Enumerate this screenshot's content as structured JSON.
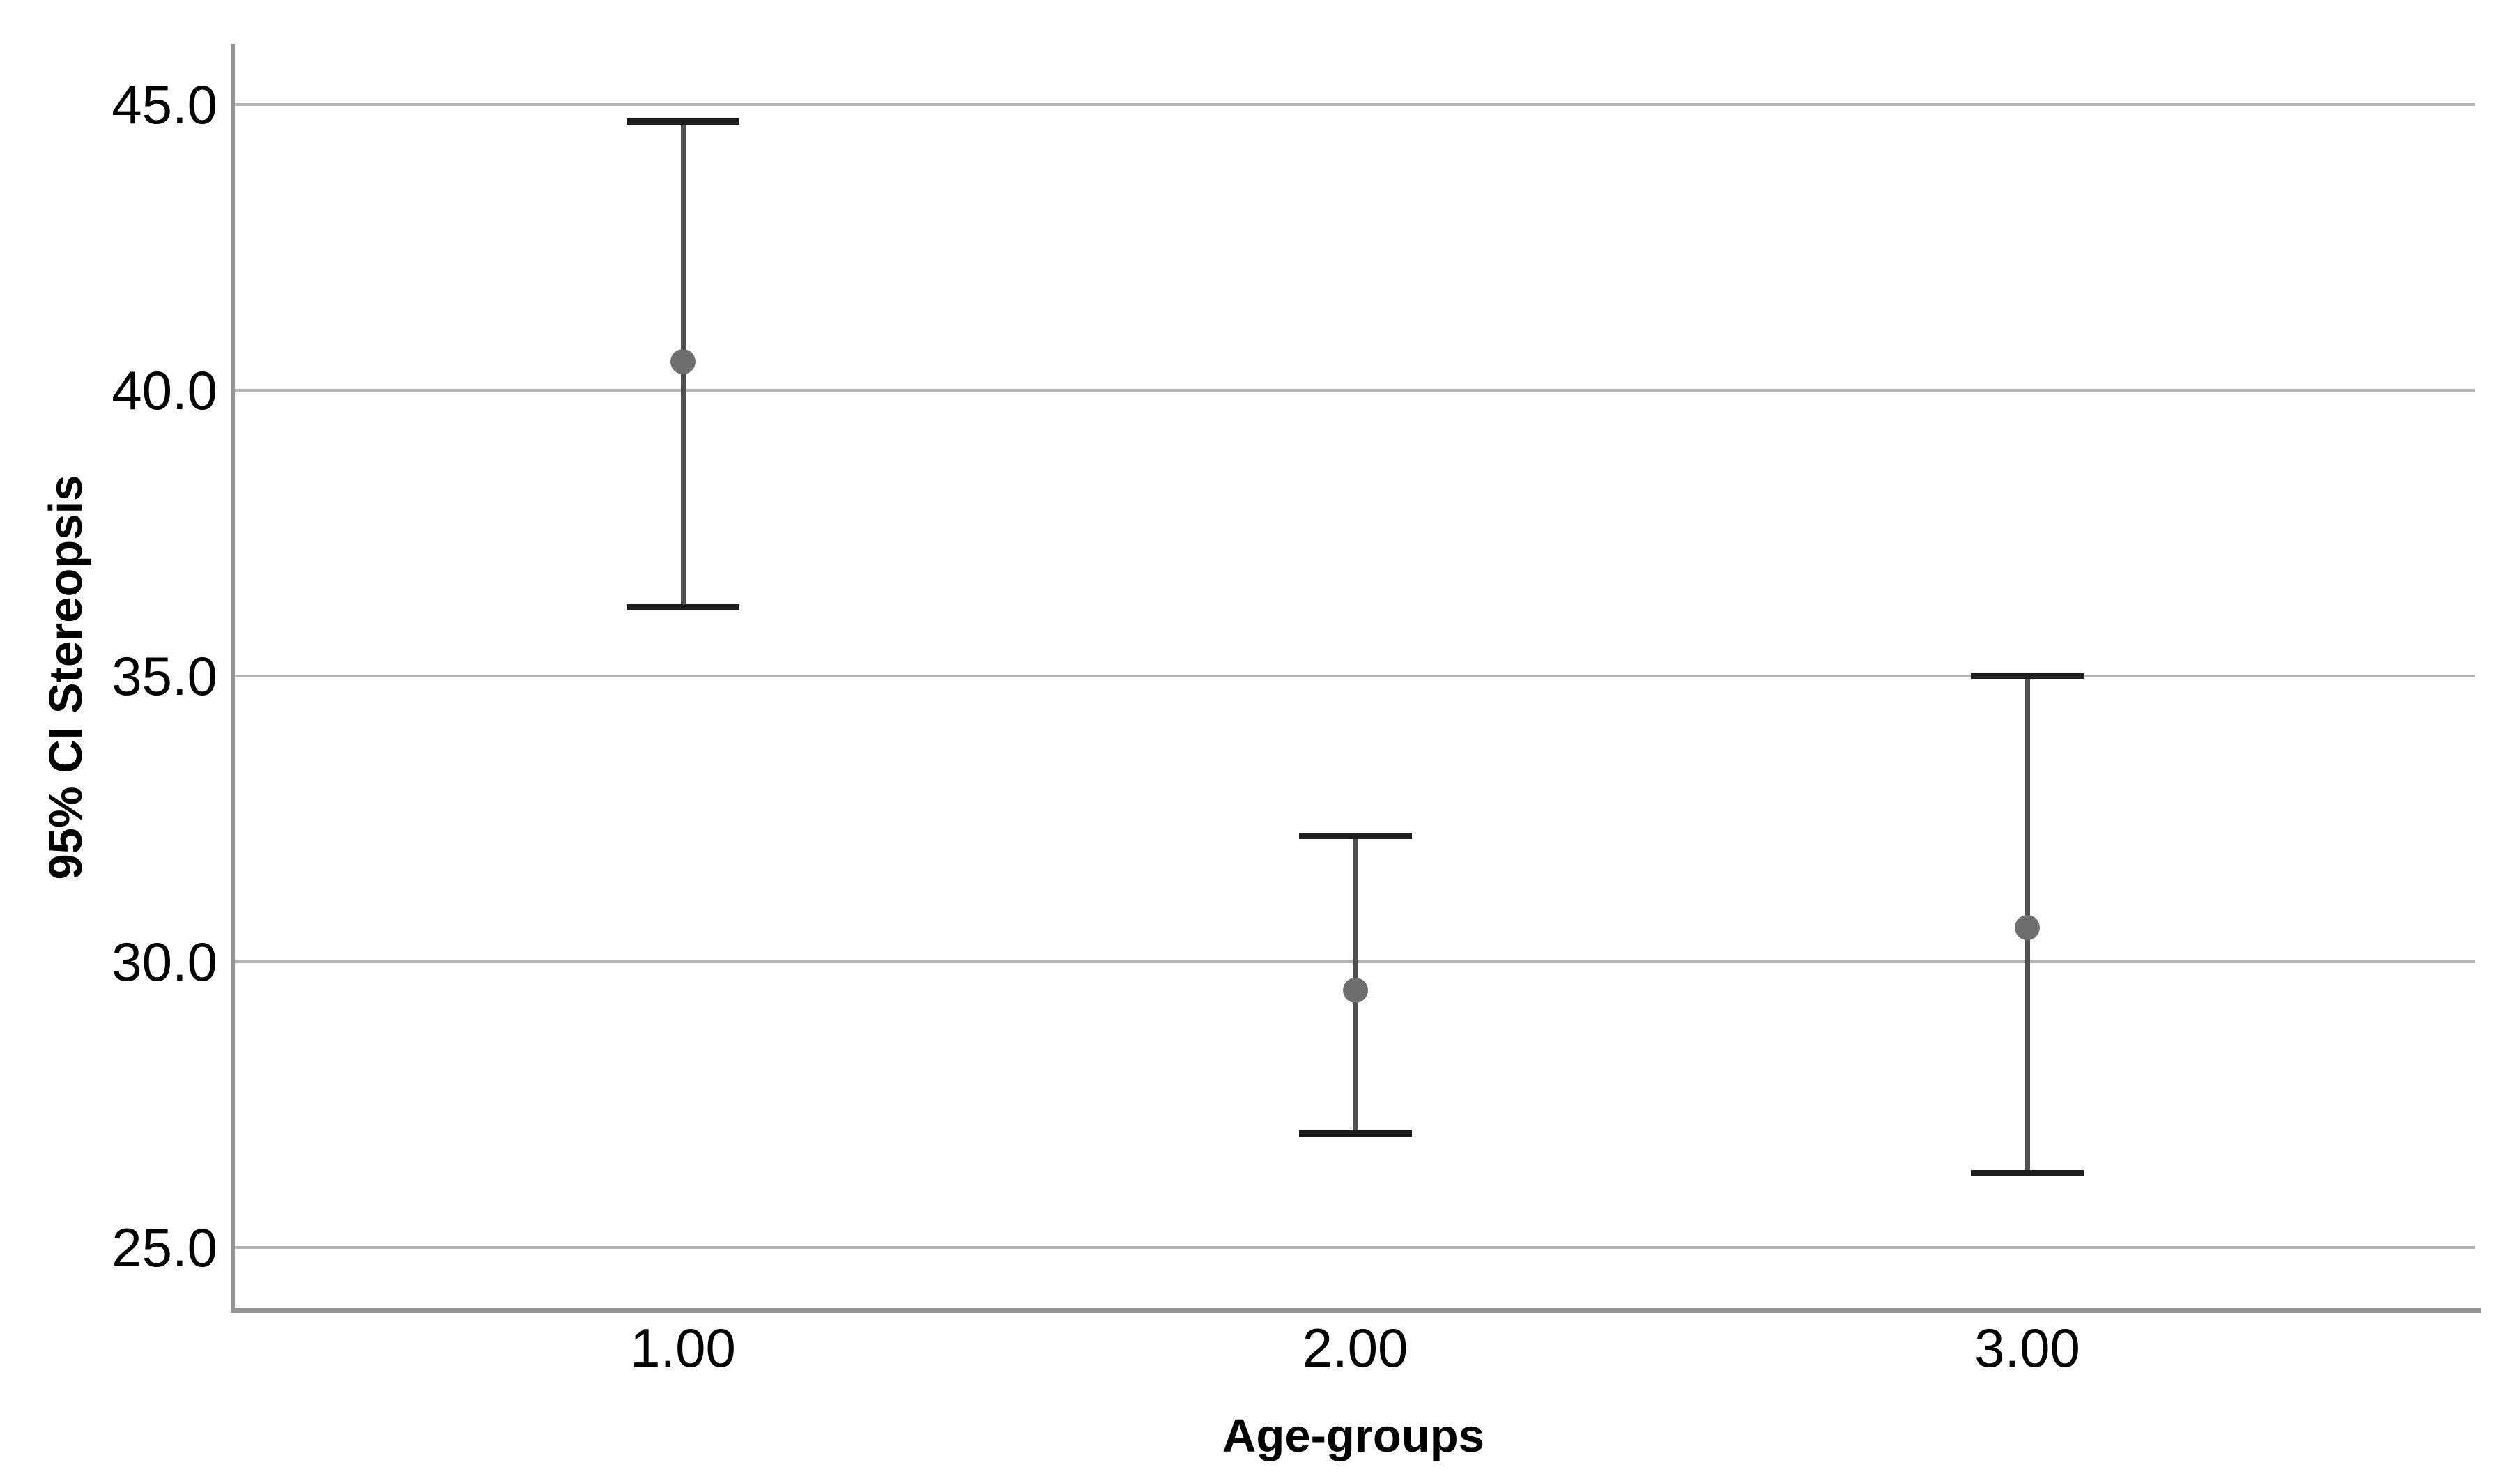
{
  "figure": {
    "background": "#ffffff",
    "y_axis_title": "95% CI Stereopsis",
    "x_axis_title": "Age-groups",
    "y_tick_labels": [
      "45.0",
      "40.0",
      "35.0",
      "30.0",
      "25.0"
    ],
    "x_tick_labels": [
      "1.00",
      "2.00",
      "3.00"
    ]
  },
  "colors": {
    "text": "#000000",
    "axis_line": "#949494",
    "gridline": "#b4b4b4",
    "errorbar_line": "#4f4f4f",
    "errorbar_cap": "#1f1f1f",
    "mean_dot": "#6e6e6e",
    "background": "#ffffff"
  },
  "chart_data": {
    "type": "scatter",
    "variant": "mean-point-with-95ci-error-bars",
    "title": "",
    "xlabel": "Age-groups",
    "ylabel": "95% CI Stereopsis",
    "categories": [
      "1.00",
      "2.00",
      "3.00"
    ],
    "series": [
      {
        "name": "95% CI Stereopsis",
        "means": [
          40.5,
          29.5,
          30.6
        ],
        "ci_lower": [
          36.2,
          27.0,
          26.3
        ],
        "ci_upper": [
          44.7,
          32.2,
          35.0
        ]
      }
    ],
    "y_ticks": [
      45.0,
      40.0,
      35.0,
      30.0,
      25.0
    ],
    "y_tick_labels": [
      "45.0",
      "40.0",
      "35.0",
      "30.0",
      "25.0"
    ],
    "ylim": [
      23.9,
      46.1
    ],
    "xlim_categorical_positions": [
      0.2,
      0.5,
      0.8
    ],
    "grid": "horizontal-major-gridlines",
    "legend": "none"
  }
}
